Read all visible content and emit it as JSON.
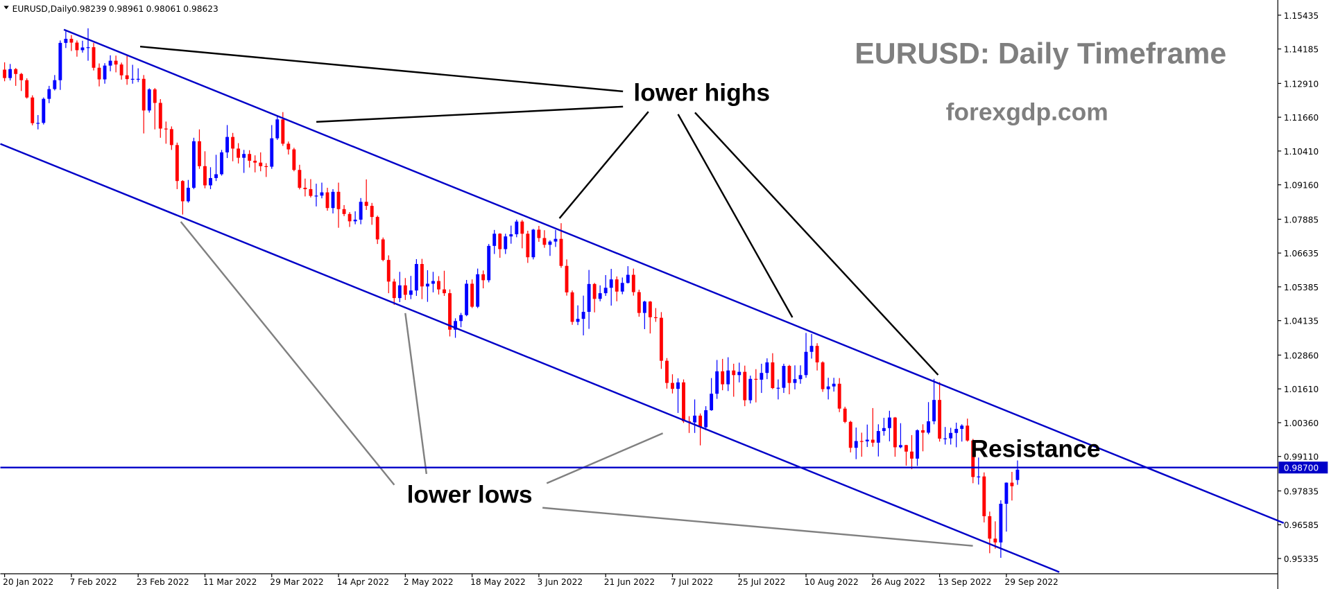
{
  "header": {
    "symbol": "EURUSD,Daily"
  },
  "chart_data": {
    "type": "candlestick",
    "title": "EURUSD: Daily Timeframe",
    "subtitle": "forexgdp.com",
    "annotations": [
      "lower highs",
      "lower lows",
      "Resistance"
    ],
    "up_color": "#0000ff",
    "down_color": "#ff0000",
    "level": {
      "value": 0.987,
      "label": "0.98700",
      "color": "#0000c8"
    },
    "ylim": [
      0.9477,
      1.1584
    ],
    "xlim": [
      -0.76,
      228.77
    ],
    "yticks": [
      1.15435,
      1.14185,
      {
        "value": 1.1291,
        "label": "1.12910"
      },
      {
        "value": 1.1166,
        "label": "1.11660"
      },
      {
        "value": 1.1041,
        "label": "1.10410"
      },
      {
        "value": 1.0916,
        "label": "1.09160"
      },
      1.07885,
      1.06635,
      1.05385,
      1.04135,
      {
        "value": 1.0286,
        "label": "1.02860"
      },
      {
        "value": 1.0161,
        "label": "1.01610"
      },
      {
        "value": 1.0036,
        "label": "1.00360"
      },
      {
        "value": 0.9911,
        "label": "0.99110"
      },
      0.97835,
      0.96585,
      0.95335
    ],
    "xticks": [
      {
        "value": 0,
        "label": "20 Jan 2022"
      },
      {
        "value": 12,
        "label": "7 Feb 2022"
      },
      {
        "value": 24,
        "label": "23 Feb 2022"
      },
      {
        "value": 36,
        "label": "11 Mar 2022"
      },
      {
        "value": 48,
        "label": "29 Mar 2022"
      },
      {
        "value": 60,
        "label": "14 Apr 2022"
      },
      {
        "value": 72,
        "label": "2 May 2022"
      },
      {
        "value": 84,
        "label": "18 May 2022"
      },
      {
        "value": 96,
        "label": "3 Jun 2022"
      },
      {
        "value": 108,
        "label": "21 Jun 2022"
      },
      {
        "value": 120,
        "label": "7 Jul 2022"
      },
      {
        "value": 132,
        "label": "25 Jul 2022"
      },
      {
        "value": 144,
        "label": "10 Aug 2022"
      },
      {
        "value": 156,
        "label": "26 Aug 2022"
      },
      {
        "value": 168,
        "label": "13 Sep 2022"
      },
      {
        "value": 180,
        "label": "29 Sep 2022"
      }
    ],
    "candles": [
      [
        1.1342,
        1.1369,
        1.1299,
        1.1311
      ],
      [
        1.1311,
        1.1363,
        1.1302,
        1.1344
      ],
      [
        1.1344,
        1.1348,
        1.1282,
        1.1326
      ],
      [
        1.1326,
        1.133,
        1.1263,
        1.1303
      ],
      [
        1.1303,
        1.131,
        1.1235,
        1.1239
      ],
      [
        1.1239,
        1.1247,
        1.1136,
        1.1144
      ],
      [
        1.1144,
        1.1174,
        1.1121,
        1.1145
      ],
      [
        1.1145,
        1.1239,
        1.1139,
        1.1234
      ],
      [
        1.1234,
        1.1282,
        1.1218,
        1.127
      ],
      [
        1.127,
        1.1322,
        1.1265,
        1.1303
      ],
      [
        1.1303,
        1.145,
        1.1267,
        1.1441
      ],
      [
        1.1441,
        1.1484,
        1.1422,
        1.1456
      ],
      [
        1.1456,
        1.147,
        1.1411,
        1.1442
      ],
      [
        1.1442,
        1.145,
        1.139,
        1.1414
      ],
      [
        1.1414,
        1.1449,
        1.1405,
        1.1424
      ],
      [
        1.1424,
        1.1495,
        1.1375,
        1.1425
      ],
      [
        1.1425,
        1.1441,
        1.1339,
        1.1349
      ],
      [
        1.1349,
        1.1365,
        1.128,
        1.1306
      ],
      [
        1.1306,
        1.1366,
        1.129,
        1.1357
      ],
      [
        1.1357,
        1.1395,
        1.1336,
        1.1375
      ],
      [
        1.1375,
        1.1394,
        1.1332,
        1.1361
      ],
      [
        1.1361,
        1.1368,
        1.1305,
        1.1321
      ],
      [
        1.1321,
        1.1395,
        1.1286,
        1.1307
      ],
      [
        1.1307,
        1.136,
        1.129,
        1.1308
      ],
      [
        1.1308,
        1.1347,
        1.1296,
        1.1308
      ],
      [
        1.1308,
        1.1322,
        1.1106,
        1.1191
      ],
      [
        1.1191,
        1.1273,
        1.1183,
        1.1269
      ],
      [
        1.1269,
        1.1274,
        1.1121,
        1.1219
      ],
      [
        1.1219,
        1.1233,
        1.109,
        1.1124
      ],
      [
        1.1124,
        1.115,
        1.1068,
        1.1122
      ],
      [
        1.1122,
        1.1132,
        1.1045,
        1.1063
      ],
      [
        1.1063,
        1.1072,
        1.09,
        1.093
      ],
      [
        1.093,
        1.0933,
        1.0806,
        1.0855
      ],
      [
        1.0855,
        1.0934,
        1.085,
        1.0905
      ],
      [
        1.0905,
        1.109,
        1.09,
        1.1077
      ],
      [
        1.1077,
        1.1121,
        1.0975,
        1.0985
      ],
      [
        1.0985,
        1.104,
        1.0903,
        1.0914
      ],
      [
        1.0914,
        1.0981,
        1.09,
        1.0941
      ],
      [
        1.0941,
        1.1027,
        1.093,
        1.0955
      ],
      [
        1.0955,
        1.1045,
        1.095,
        1.1036
      ],
      [
        1.1036,
        1.1137,
        1.1015,
        1.1093
      ],
      [
        1.1093,
        1.1108,
        1.1003,
        1.105
      ],
      [
        1.105,
        1.107,
        1.0995,
        1.1016
      ],
      [
        1.1016,
        1.1045,
        1.096,
        1.103
      ],
      [
        1.103,
        1.1044,
        1.098,
        1.1005
      ],
      [
        1.1005,
        1.1025,
        1.0962,
        1.0998
      ],
      [
        1.0998,
        1.1036,
        1.0966,
        1.0985
      ],
      [
        1.0985,
        1.0996,
        1.0945,
        1.0983
      ],
      [
        1.0983,
        1.1137,
        1.0975,
        1.1088
      ],
      [
        1.1088,
        1.117,
        1.1082,
        1.1158
      ],
      [
        1.1158,
        1.1185,
        1.106,
        1.1068
      ],
      [
        1.1068,
        1.1076,
        1.1028,
        1.1047
      ],
      [
        1.1047,
        1.1053,
        1.0966,
        1.0971
      ],
      [
        1.0971,
        1.099,
        1.0899,
        1.0905
      ],
      [
        1.0905,
        1.0939,
        1.0873,
        1.09
      ],
      [
        1.09,
        1.0937,
        1.0869,
        1.0875
      ],
      [
        1.0875,
        1.092,
        1.0836,
        1.0876
      ],
      [
        1.0876,
        1.0924,
        1.0866,
        1.0888
      ],
      [
        1.0888,
        1.0905,
        1.082,
        1.083
      ],
      [
        1.083,
        1.09,
        1.081,
        1.089
      ],
      [
        1.089,
        1.0924,
        1.0757,
        1.0826
      ],
      [
        1.0826,
        1.0841,
        1.08,
        1.0808
      ],
      [
        1.0808,
        1.0815,
        1.076,
        1.0781
      ],
      [
        1.0781,
        1.0818,
        1.077,
        1.0787
      ],
      [
        1.0787,
        1.0867,
        1.077,
        1.0853
      ],
      [
        1.0853,
        1.0936,
        1.0823,
        1.0838
      ],
      [
        1.0838,
        1.0849,
        1.0768,
        1.0797
      ],
      [
        1.0797,
        1.0802,
        1.0697,
        1.0714
      ],
      [
        1.0714,
        1.0721,
        1.0633,
        1.0638
      ],
      [
        1.0638,
        1.0655,
        1.0515,
        1.0558
      ],
      [
        1.0558,
        1.0568,
        1.0472,
        1.0497
      ],
      [
        1.0497,
        1.0594,
        1.0482,
        1.0544
      ],
      [
        1.0544,
        1.0571,
        1.049,
        1.0509
      ],
      [
        1.0509,
        1.0579,
        1.0493,
        1.0525
      ],
      [
        1.0525,
        1.0641,
        1.0505,
        1.0623
      ],
      [
        1.0623,
        1.0642,
        1.0493,
        1.054
      ],
      [
        1.054,
        1.06,
        1.0483,
        1.055
      ],
      [
        1.055,
        1.0594,
        1.0518,
        1.056
      ],
      [
        1.056,
        1.0578,
        1.051,
        1.0529
      ],
      [
        1.0529,
        1.0598,
        1.0505,
        1.0515
      ],
      [
        1.0515,
        1.0529,
        1.0355,
        1.038
      ],
      [
        1.038,
        1.0422,
        1.035,
        1.0412
      ],
      [
        1.0412,
        1.0442,
        1.0389,
        1.0434
      ],
      [
        1.0434,
        1.0564,
        1.043,
        1.055
      ],
      [
        1.055,
        1.0566,
        1.046,
        1.0465
      ],
      [
        1.0465,
        1.0606,
        1.046,
        1.0585
      ],
      [
        1.0585,
        1.0599,
        1.0533,
        1.0563
      ],
      [
        1.0563,
        1.0697,
        1.0555,
        1.069
      ],
      [
        1.069,
        1.0749,
        1.066,
        1.0735
      ],
      [
        1.0735,
        1.0737,
        1.0646,
        1.0678
      ],
      [
        1.0678,
        1.0735,
        1.066,
        1.0725
      ],
      [
        1.0725,
        1.0765,
        1.0698,
        1.0733
      ],
      [
        1.0733,
        1.0787,
        1.0722,
        1.078
      ],
      [
        1.078,
        1.0786,
        1.0681,
        1.0735
      ],
      [
        1.0735,
        1.0746,
        1.0627,
        1.0648
      ],
      [
        1.0648,
        1.0753,
        1.064,
        1.075
      ],
      [
        1.075,
        1.0764,
        1.0705,
        1.0719
      ],
      [
        1.0719,
        1.0748,
        1.0683,
        1.0694
      ],
      [
        1.0694,
        1.0711,
        1.0653,
        1.0706
      ],
      [
        1.0706,
        1.0749,
        1.0686,
        1.0716
      ],
      [
        1.0716,
        1.0774,
        1.0609,
        1.0616
      ],
      [
        1.0616,
        1.064,
        1.0506,
        1.0518
      ],
      [
        1.0518,
        1.0525,
        1.0398,
        1.0409
      ],
      [
        1.0409,
        1.047,
        1.0397,
        1.042
      ],
      [
        1.042,
        1.0506,
        1.0359,
        1.0446
      ],
      [
        1.0446,
        1.0601,
        1.0383,
        1.0549
      ],
      [
        1.0549,
        1.0553,
        1.0444,
        1.0494
      ],
      [
        1.0494,
        1.0544,
        1.0485,
        1.0515
      ],
      [
        1.0515,
        1.0582,
        1.0505,
        1.0535
      ],
      [
        1.0535,
        1.0605,
        1.0469,
        1.0566
      ],
      [
        1.0566,
        1.0577,
        1.0485,
        1.0521
      ],
      [
        1.0521,
        1.0573,
        1.0511,
        1.0553
      ],
      [
        1.0553,
        1.0615,
        1.0551,
        1.0583
      ],
      [
        1.0583,
        1.0606,
        1.0506,
        1.0519
      ],
      [
        1.0519,
        1.0528,
        1.0428,
        1.0442
      ],
      [
        1.0442,
        1.0487,
        1.0382,
        1.0484
      ],
      [
        1.0484,
        1.0486,
        1.0366,
        1.0426
      ],
      [
        1.0426,
        1.046,
        1.0409,
        1.0424
      ],
      [
        1.0424,
        1.0445,
        1.0235,
        1.0265
      ],
      [
        1.0265,
        1.0275,
        1.0162,
        1.0183
      ],
      [
        1.0183,
        1.0215,
        1.0144,
        1.0161
      ],
      [
        1.0161,
        1.02,
        1.0072,
        1.0185
      ],
      [
        1.0185,
        1.0196,
        1.0035,
        1.0041
      ],
      [
        1.0041,
        1.006,
        0.9998,
        1.0037
      ],
      [
        1.0037,
        1.0122,
        0.9998,
        1.0062
      ],
      [
        1.0062,
        1.007,
        0.9952,
        1.0019
      ],
      [
        1.0019,
        1.0097,
        1.0008,
        1.0082
      ],
      [
        1.0082,
        1.0201,
        1.008,
        1.0143
      ],
      [
        1.0143,
        1.0268,
        1.0124,
        1.0226
      ],
      [
        1.0226,
        1.0272,
        1.0156,
        1.0178
      ],
      [
        1.0178,
        1.0278,
        1.0153,
        1.0229
      ],
      [
        1.0229,
        1.0254,
        1.0132,
        1.0212
      ],
      [
        1.0212,
        1.0258,
        1.0185,
        1.0224
      ],
      [
        1.0224,
        1.0247,
        1.0097,
        1.0119
      ],
      [
        1.0119,
        1.021,
        1.0107,
        1.0198
      ],
      [
        1.0198,
        1.0234,
        1.0111,
        1.0195
      ],
      [
        1.0195,
        1.0254,
        1.0146,
        1.022
      ],
      [
        1.022,
        1.0274,
        1.0197,
        1.0259
      ],
      [
        1.0259,
        1.0293,
        1.016,
        1.0164
      ],
      [
        1.0164,
        1.0196,
        1.0122,
        1.0165
      ],
      [
        1.0165,
        1.0254,
        1.0146,
        1.0246
      ],
      [
        1.0246,
        1.025,
        1.0141,
        1.0183
      ],
      [
        1.0183,
        1.0248,
        1.0159,
        1.0197
      ],
      [
        1.0197,
        1.0248,
        1.018,
        1.0212
      ],
      [
        1.0212,
        1.0368,
        1.0202,
        1.0298
      ],
      [
        1.0298,
        1.0364,
        1.0273,
        1.032
      ],
      [
        1.032,
        1.033,
        1.0229,
        1.0259
      ],
      [
        1.0259,
        1.0263,
        1.015,
        1.016
      ],
      [
        1.016,
        1.0202,
        1.0122,
        1.017
      ],
      [
        1.017,
        1.0202,
        1.0151,
        1.018
      ],
      [
        1.018,
        1.0201,
        1.0075,
        1.0088
      ],
      [
        1.0088,
        1.0095,
        1.0034,
        1.0039
      ],
      [
        1.0039,
        1.0043,
        0.9926,
        0.9943
      ],
      [
        0.9943,
        1.0018,
        0.9901,
        0.9968
      ],
      [
        0.9968,
        0.9999,
        0.991,
        0.9967
      ],
      [
        0.9967,
        1.0029,
        0.9946,
        0.9973
      ],
      [
        0.9973,
        1.009,
        0.9947,
        0.9962
      ],
      [
        0.9962,
        1.003,
        0.9911,
        1.0005
      ],
      [
        1.0005,
        1.0054,
        0.9988,
        1.0016
      ],
      [
        1.0016,
        1.008,
        0.9967,
        1.0055
      ],
      [
        1.0055,
        1.0057,
        0.991,
        0.9945
      ],
      [
        0.9945,
        1.0034,
        0.9941,
        0.9953
      ],
      [
        0.9953,
        0.9954,
        0.9877,
        0.9929
      ],
      [
        0.9929,
        0.999,
        0.9864,
        0.9903
      ],
      [
        0.9903,
        1.0011,
        0.9876,
        1.0008
      ],
      [
        1.0008,
        1.003,
        0.993,
        0.9999
      ],
      [
        0.9999,
        1.0112,
        0.9993,
        1.0041
      ],
      [
        1.0041,
        1.0198,
        1.003,
        1.012
      ],
      [
        1.012,
        1.0186,
        0.9966,
        0.9977
      ],
      [
        0.9977,
        1.002,
        0.9955,
        0.9978
      ],
      [
        0.9978,
        1.0017,
        0.9955,
        0.9998
      ],
      [
        0.9998,
        1.0036,
        0.9945,
        1.0013
      ],
      [
        1.0013,
        1.003,
        0.9966,
        1.0025
      ],
      [
        1.0025,
        1.0051,
        0.9966,
        0.997
      ],
      [
        0.997,
        0.9976,
        0.9812,
        0.9835
      ],
      [
        0.9835,
        0.9907,
        0.9807,
        0.9837
      ],
      [
        0.9837,
        0.9852,
        0.9667,
        0.969
      ],
      [
        0.969,
        0.9707,
        0.9553,
        0.9607
      ],
      [
        0.9607,
        0.9671,
        0.957,
        0.9593
      ],
      [
        0.9593,
        0.9749,
        0.9536,
        0.9736
      ],
      [
        0.9736,
        0.9815,
        0.9633,
        0.9814
      ],
      [
        0.9814,
        0.9854,
        0.9748,
        0.9801
      ],
      [
        0.98239,
        0.98961,
        0.98061,
        0.98623
      ]
    ]
  }
}
